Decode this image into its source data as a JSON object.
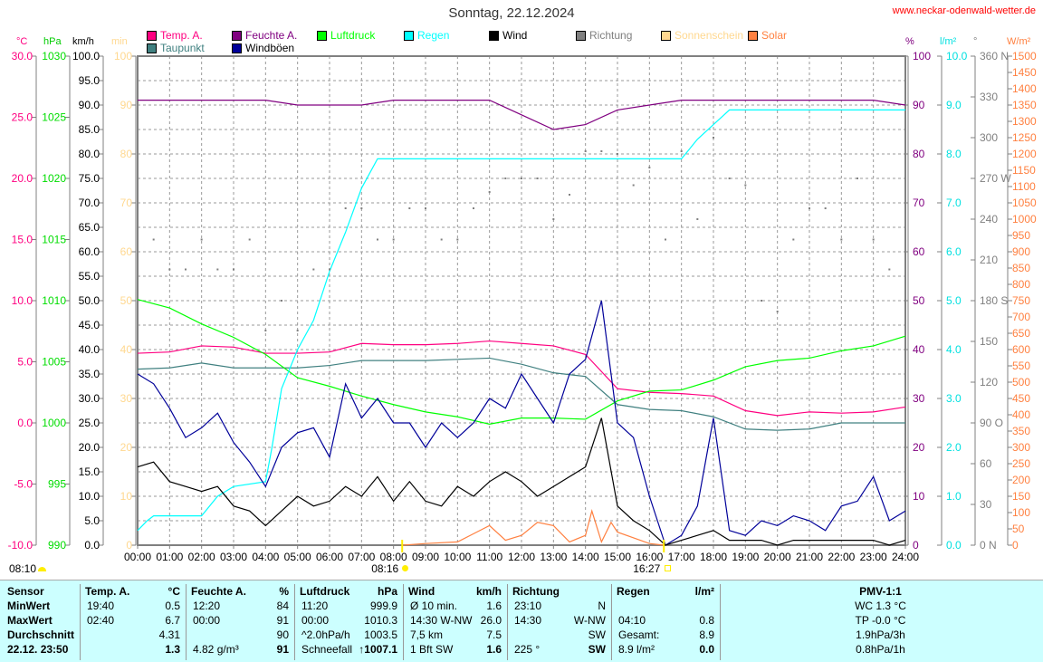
{
  "header": {
    "title": "Sonntag, 22.12.2024",
    "url": "www.neckar-odenwald-wetter.de"
  },
  "legend": [
    {
      "label": "Temp. A.",
      "color": "#ff0080"
    },
    {
      "label": "Taupunkt",
      "color": "#408080"
    },
    {
      "label": "Feuchte A.",
      "color": "#800080"
    },
    {
      "label": "Windböen",
      "color": "#000099"
    },
    {
      "label": "Luftdruck",
      "color": "#00ff00"
    },
    {
      "label": "Regen",
      "color": "#00ffff"
    },
    {
      "label": "Wind",
      "color": "#000000"
    },
    {
      "label": "Richtung",
      "color": "#808080"
    },
    {
      "label": "Sonnenschein",
      "color": "#ffd890"
    },
    {
      "label": "Solar",
      "color": "#ff8040"
    }
  ],
  "units": {
    "temp": "°C",
    "pressure": "hPa",
    "wind": "km/h",
    "sun": "min",
    "humidity": "%",
    "rain": "l/m²",
    "direction": "°",
    "solar": "W/m²"
  },
  "axes": {
    "temp": [
      "30.0",
      "25.0",
      "20.0",
      "15.0",
      "10.0",
      "5.0",
      "0.0",
      "-5.0",
      "-10.0"
    ],
    "pressure": [
      "1030",
      "1025",
      "1020",
      "1015",
      "1010",
      "1005",
      "1000",
      "995",
      "990"
    ],
    "wind": [
      "100.0",
      "95.0",
      "90.0",
      "85.0",
      "80.0",
      "75.0",
      "70.0",
      "65.0",
      "60.0",
      "55.0",
      "50.0",
      "45.0",
      "40.0",
      "35.0",
      "30.0",
      "25.0",
      "20.0",
      "15.0",
      "10.0",
      "5.0",
      "0.0"
    ],
    "sun": [
      "100",
      "90",
      "80",
      "70",
      "60",
      "50",
      "40",
      "30",
      "20",
      "10",
      "0"
    ],
    "humidity": [
      "100",
      "90",
      "80",
      "70",
      "60",
      "50",
      "40",
      "30",
      "20",
      "10",
      "0"
    ],
    "rain": [
      "10.0",
      "9.0",
      "8.0",
      "7.0",
      "6.0",
      "5.0",
      "4.0",
      "3.0",
      "2.0",
      "1.0",
      "0.0"
    ],
    "direction": [
      "360 N",
      "330",
      "300",
      "270 W",
      "240",
      "210",
      "180 S",
      "150",
      "120",
      "90 O",
      "60",
      "30",
      "0 N"
    ],
    "solar": [
      "1500",
      "1450",
      "1400",
      "1350",
      "1300",
      "1250",
      "1200",
      "1150",
      "1100",
      "1050",
      "1000",
      "950",
      "900",
      "850",
      "800",
      "750",
      "700",
      "650",
      "600",
      "550",
      "500",
      "450",
      "400",
      "350",
      "300",
      "250",
      "200",
      "150",
      "100",
      "50",
      "0"
    ],
    "time": [
      "00:00",
      "01:00",
      "02:00",
      "03:00",
      "04:00",
      "05:00",
      "06:00",
      "07:00",
      "08:00",
      "09:00",
      "10:00",
      "11:00",
      "12:00",
      "13:00",
      "14:00",
      "15:00",
      "16:00",
      "17:00",
      "18:00",
      "19:00",
      "20:00",
      "21:00",
      "22:00",
      "23:00",
      "24:00"
    ]
  },
  "events": {
    "moon": "08:10",
    "sunrise": "08:16",
    "sunset": "16:27",
    "sunrise_h": 8.27,
    "sunset_h": 16.45
  },
  "chart_data": {
    "type": "line",
    "title": "Sonntag, 22.12.2024",
    "xlabel": "Uhrzeit",
    "xlim": [
      0,
      24
    ],
    "x_hourly": [
      0,
      1,
      2,
      3,
      4,
      5,
      6,
      7,
      8,
      9,
      10,
      11,
      12,
      13,
      14,
      15,
      16,
      17,
      18,
      19,
      20,
      21,
      22,
      23,
      24
    ],
    "x_half": [
      0,
      0.5,
      1,
      1.5,
      2,
      2.5,
      3,
      3.5,
      4,
      4.5,
      5,
      5.5,
      6,
      6.5,
      7,
      7.5,
      8,
      8.5,
      9,
      9.5,
      10,
      10.5,
      11,
      11.5,
      12,
      12.5,
      13,
      13.5,
      14,
      14.5,
      15,
      15.5,
      16,
      16.5,
      17,
      17.5,
      18,
      18.5,
      19,
      19.5,
      20,
      20.5,
      21,
      21.5,
      22,
      22.5,
      23,
      23.5,
      24
    ],
    "series": [
      {
        "name": "Temp. A.",
        "key": "temp",
        "x": "x_hourly",
        "range": [
          -10,
          30
        ],
        "color": "#ff0080",
        "values": [
          5.7,
          5.8,
          6.3,
          6.2,
          5.7,
          5.7,
          5.8,
          6.5,
          6.4,
          6.4,
          6.5,
          6.7,
          6.5,
          6.3,
          5.6,
          2.8,
          2.5,
          2.4,
          2.2,
          1.0,
          0.6,
          0.9,
          0.8,
          0.9,
          1.3
        ]
      },
      {
        "name": "Taupunkt",
        "key": "dew",
        "x": "x_hourly",
        "range": [
          -10,
          30
        ],
        "color": "#408080",
        "values": [
          4.4,
          4.5,
          4.9,
          4.5,
          4.5,
          4.5,
          4.7,
          5.1,
          5.1,
          5.1,
          5.2,
          5.3,
          4.8,
          4.1,
          3.8,
          1.5,
          1.1,
          1.0,
          0.5,
          -0.5,
          -0.6,
          -0.5,
          0,
          0,
          0
        ]
      },
      {
        "name": "Feuchte A.",
        "key": "humidity",
        "x": "x_hourly",
        "range": [
          0,
          100
        ],
        "color": "#800080",
        "values": [
          91,
          91,
          91,
          91,
          91,
          90,
          90,
          90,
          91,
          91,
          91,
          91,
          88,
          85,
          86,
          89,
          90,
          91,
          91,
          91,
          91,
          91,
          91,
          91,
          90
        ]
      },
      {
        "name": "Luftdruck",
        "key": "pressure",
        "x": "x_hourly",
        "range": [
          990,
          1030
        ],
        "color": "#00ff00",
        "values": [
          1010.1,
          1009.4,
          1008.1,
          1007.0,
          1005.6,
          1003.7,
          1003.0,
          1002.2,
          1001.5,
          1000.9,
          1000.5,
          999.9,
          1000.4,
          1000.4,
          1000.3,
          1001.8,
          1002.6,
          1002.7,
          1003.5,
          1004.6,
          1005.1,
          1005.3,
          1005.9,
          1006.3,
          1007.1
        ]
      },
      {
        "name": "Regen",
        "key": "rain",
        "xv": [
          0,
          0.3,
          0.5,
          1,
          2,
          2.5,
          3,
          4,
          4.2,
          4.5,
          5,
          5.5,
          6,
          6.5,
          7,
          7.5,
          8,
          17,
          17.5,
          18,
          18.5,
          24
        ],
        "range": [
          0,
          10
        ],
        "color": "#00ffff",
        "values": [
          0.3,
          0.5,
          0.6,
          0.6,
          0.6,
          1.0,
          1.2,
          1.3,
          2.0,
          3.2,
          4.0,
          4.6,
          5.6,
          6.4,
          7.3,
          7.9,
          7.9,
          7.9,
          8.3,
          8.6,
          8.9,
          8.9
        ]
      },
      {
        "name": "Windböen",
        "key": "gust",
        "x": "x_half",
        "range": [
          0,
          100
        ],
        "color": "#000099",
        "values": [
          35,
          33,
          28,
          22,
          24,
          27,
          21,
          17,
          12,
          20,
          23,
          24,
          18,
          33,
          26,
          30,
          25,
          25,
          20,
          25,
          22,
          25,
          30,
          28,
          35,
          30,
          25,
          35,
          38,
          50,
          25,
          22,
          10,
          0,
          2,
          8,
          26,
          3,
          2,
          5,
          4,
          6,
          5,
          3,
          8,
          9,
          14,
          5,
          7
        ]
      },
      {
        "name": "Wind",
        "key": "wind",
        "x": "x_half",
        "range": [
          0,
          100
        ],
        "color": "#000000",
        "values": [
          16,
          17,
          13,
          12,
          11,
          12,
          8,
          7,
          4,
          7,
          10,
          8,
          9,
          12,
          10,
          14,
          9,
          13,
          9,
          8,
          12,
          10,
          13,
          15,
          13,
          10,
          12,
          14,
          16,
          26,
          8,
          5,
          3,
          0,
          1,
          2,
          3,
          1,
          1,
          1,
          0,
          1,
          1,
          1,
          1,
          1,
          1,
          0,
          1
        ]
      },
      {
        "name": "Solar",
        "key": "solar",
        "xv": [
          8.3,
          9,
          10,
          10.5,
          11,
          11.5,
          12,
          12.5,
          13,
          13.5,
          14,
          14.2,
          14.5,
          14.8,
          15,
          16,
          16.45
        ],
        "range": [
          0,
          1500
        ],
        "color": "#ff8040",
        "values": [
          0,
          5,
          10,
          35,
          60,
          15,
          30,
          70,
          60,
          10,
          30,
          105,
          10,
          70,
          40,
          5,
          0
        ]
      },
      {
        "name": "Richtung",
        "key": "direction",
        "x": "x_half",
        "range": [
          0,
          360
        ],
        "color": "#808080",
        "dots": true,
        "values": [
          225,
          225,
          203,
          203,
          225,
          203,
          203,
          225,
          158,
          180,
          158,
          203,
          203,
          248,
          248,
          225,
          225,
          248,
          248,
          225,
          225,
          248,
          260,
          270,
          270,
          270,
          240,
          258,
          290,
          290,
          288,
          265,
          278,
          225,
          290,
          240,
          300,
          270,
          265,
          180,
          172,
          225,
          248,
          248,
          225,
          270,
          225,
          203,
          225
        ]
      }
    ]
  },
  "table": {
    "headers": [
      [
        "Sensor",
        ""
      ],
      [
        "Temp. A.",
        "°C"
      ],
      [
        "Feuchte A.",
        "%"
      ],
      [
        "Luftdruck",
        "hPa"
      ],
      [
        "Wind",
        "km/h"
      ],
      [
        "Richtung",
        ""
      ],
      [
        "Regen",
        "l/m²"
      ],
      [
        "PMV-1:1",
        ""
      ]
    ],
    "row_labels": [
      "MinWert",
      "MaxWert",
      "Durchschnitt",
      "22.12. 23:50"
    ],
    "temp": [
      [
        "19:40",
        "0.5"
      ],
      [
        "02:40",
        "6.7"
      ],
      [
        "",
        "4.31"
      ],
      [
        "",
        "1.3"
      ]
    ],
    "humidity": [
      [
        "12:20",
        "84"
      ],
      [
        "00:00",
        "91"
      ],
      [
        "",
        "90"
      ],
      [
        "4.82 g/m³",
        "91"
      ]
    ],
    "pressure": [
      [
        "11:20",
        "999.9"
      ],
      [
        "00:00",
        "1010.3"
      ],
      [
        "^2.0hPa/h",
        "1003.5"
      ],
      [
        "Schneefall",
        "↑1007.1"
      ]
    ],
    "wind": [
      [
        "Ø 10 min.",
        "1.6"
      ],
      [
        "14:30  W-NW",
        "26.0"
      ],
      [
        "7,5 km",
        "7.5"
      ],
      [
        "1 Bft SW",
        "1.6"
      ]
    ],
    "direction": [
      [
        "23:10",
        "N"
      ],
      [
        "14:30",
        "W-NW"
      ],
      [
        "",
        "SW"
      ],
      [
        "225 °",
        "SW"
      ]
    ],
    "rain": [
      [
        "",
        ""
      ],
      [
        "04:10",
        "0.8"
      ],
      [
        "Gesamt:",
        "8.9"
      ],
      [
        "8.9 l/m²",
        "0.0"
      ]
    ],
    "pmv": [
      "WC 1.3 °C",
      "TP -0.0 °C",
      "1.9hPa/3h",
      "0.8hPa/1h"
    ]
  }
}
